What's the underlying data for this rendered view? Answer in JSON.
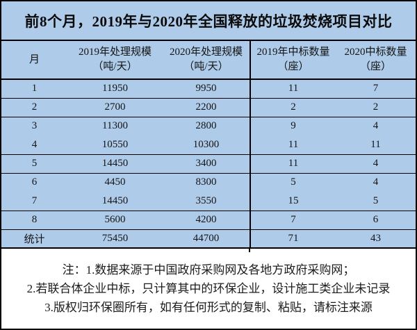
{
  "title": "前8个月，2019年与2020年全国释放的垃圾焚烧项目对比",
  "colors": {
    "table_background": "#aecbe9",
    "border": "#000000",
    "notes_background": "#ffffff",
    "text": "#141414"
  },
  "table": {
    "headers": [
      {
        "line1": "月",
        "line2": ""
      },
      {
        "line1": "2019年处理规模",
        "line2": "（吨/天）"
      },
      {
        "line1": "2020年处理规模",
        "line2": "（吨/天）"
      },
      {
        "line1": "2019年中标数量",
        "line2": "（座）"
      },
      {
        "line1": "2020中标数量",
        "line2": "（座）"
      }
    ],
    "rows": [
      [
        "1",
        "11950",
        "9950",
        "11",
        "7"
      ],
      [
        "2",
        "2700",
        "2200",
        "2",
        "2"
      ],
      [
        "3",
        "11300",
        "2800",
        "9",
        "4"
      ],
      [
        "4",
        "10550",
        "10300",
        "11",
        "11"
      ],
      [
        "5",
        "14450",
        "3400",
        "11",
        "4"
      ],
      [
        "6",
        "4450",
        "8300",
        "5",
        "4"
      ],
      [
        "7",
        "14450",
        "3550",
        "15",
        "5"
      ],
      [
        "8",
        "5600",
        "4200",
        "7",
        "6"
      ],
      [
        "统计",
        "75450",
        "44700",
        "71",
        "43"
      ]
    ],
    "total_row_label": "统计"
  },
  "notes": {
    "line1": "注：1.数据来源于中国政府采购网及各地方政府采购网；",
    "line2": "2.若联合体企业中标，只计算其中的环保企业，设计施工类企业未记录",
    "line3": "3.版权归环保圈所有，如有任何形式的复制、粘贴，请标注来源"
  },
  "chart_data": {
    "type": "table",
    "title": "前8个月，2019年与2020年全国释放的垃圾焚烧项目对比",
    "categories": [
      "1",
      "2",
      "3",
      "4",
      "5",
      "6",
      "7",
      "8"
    ],
    "series": [
      {
        "name": "2019年处理规模（吨/天）",
        "values": [
          11950,
          2700,
          11300,
          10550,
          14450,
          4450,
          14450,
          5600
        ],
        "total": 75450
      },
      {
        "name": "2020年处理规模（吨/天）",
        "values": [
          9950,
          2200,
          2800,
          10300,
          3400,
          8300,
          3550,
          4200
        ],
        "total": 44700
      },
      {
        "name": "2019年中标数量（座）",
        "values": [
          11,
          2,
          9,
          11,
          11,
          5,
          15,
          7
        ],
        "total": 71
      },
      {
        "name": "2020中标数量（座）",
        "values": [
          7,
          2,
          4,
          11,
          4,
          4,
          5,
          6
        ],
        "total": 43
      }
    ],
    "total_row_label": "统计",
    "notes": [
      "注：1.数据来源于中国政府采购网及各地方政府采购网；",
      "2.若联合体企业中标，只计算其中的环保企业，设计施工类企业未记录",
      "3.版权归环保圈所有，如有任何形式的复制、粘贴，请标注来源"
    ]
  }
}
